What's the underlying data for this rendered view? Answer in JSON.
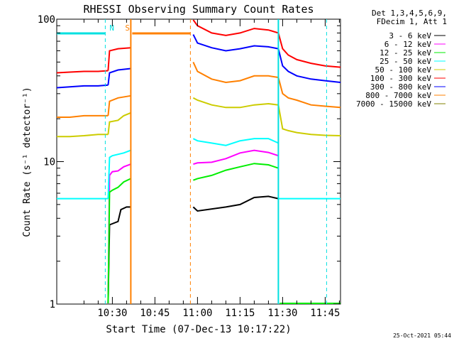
{
  "chart_data": {
    "type": "line",
    "title": "RHESSI Observing Summary Count Rates",
    "xlabel": "Start Time (07-Dec-13 10:17:22)",
    "ylabel": "Count Rate (s⁻¹ detector⁻¹)",
    "yscale": "log",
    "ylim": [
      1,
      100
    ],
    "xlim_minutes": [
      10.4,
      110.4
    ],
    "x_ticks": [
      {
        "label": "10:30",
        "t": 30
      },
      {
        "label": "10:45",
        "t": 45
      },
      {
        "label": "11:00",
        "t": 60
      },
      {
        "label": "11:15",
        "t": 75
      },
      {
        "label": "11:30",
        "t": 90
      },
      {
        "label": "11:45",
        "t": 105
      }
    ],
    "y_ticks": [
      {
        "label": "1",
        "v": 1
      },
      {
        "label": "10",
        "v": 10
      },
      {
        "label": "100",
        "v": 100
      }
    ],
    "legend": {
      "placement": "right",
      "header": [
        "Det 1,3,4,5,6,9,",
        "FDecim 1, Att 1"
      ],
      "entries": [
        {
          "label": "3 - 6 keV",
          "color": "#000000"
        },
        {
          "label": "6 - 12 keV",
          "color": "#ff00ff"
        },
        {
          "label": "12 - 25 keV",
          "color": "#00ee00"
        },
        {
          "label": "25 - 50 keV",
          "color": "#00ffff"
        },
        {
          "label": "50 - 100 keV",
          "color": "#cccc00"
        },
        {
          "label": "100 - 300 keV",
          "color": "#ff0000"
        },
        {
          "label": "300 - 800 keV",
          "color": "#0000ff"
        },
        {
          "label": "800 - 7000 keV",
          "color": "#ff8000"
        },
        {
          "label": "7000 - 15000 keV",
          "color": "#808000"
        }
      ]
    },
    "flags": [
      {
        "label": "N",
        "color": "#00e0e0",
        "start": 10.4,
        "end": 27.5,
        "dashed_at": 27.5
      },
      {
        "label": "S",
        "color": "#ff8000",
        "start": 37.0,
        "end": 57.5,
        "dashed_at": 57.5
      }
    ],
    "gap": {
      "start": 36.5,
      "end": 58.5
    },
    "solid_markers": [
      {
        "t": 36.5,
        "color": "#ff8000"
      },
      {
        "t": 88.5,
        "color": "#00e0e0"
      }
    ],
    "dashed_markers": [
      {
        "t": 27.5,
        "color": "#00e0e0"
      },
      {
        "t": 57.5,
        "color": "#ff8000"
      },
      {
        "t": 105.5,
        "color": "#00e0e0"
      }
    ],
    "series": [
      {
        "name": "3 - 6 keV",
        "color": "#000000",
        "segments": [
          {
            "x": [
              28.5,
              29,
              32,
              33,
              35,
              36.5
            ],
            "y": [
              0.9,
              3.6,
              3.8,
              4.6,
              4.8,
              4.8
            ]
          },
          {
            "x": [
              58.5,
              60,
              70,
              75,
              80,
              85,
              88.5
            ],
            "y": [
              4.8,
              4.5,
              4.8,
              5.0,
              5.6,
              5.7,
              5.5
            ]
          }
        ]
      },
      {
        "name": "6 - 12 keV",
        "color": "#ff00ff",
        "segments": [
          {
            "x": [
              28.5,
              29,
              30,
              32,
              34,
              36.5
            ],
            "y": [
              0.9,
              8.0,
              8.5,
              8.6,
              9.2,
              9.6
            ]
          },
          {
            "x": [
              58.5,
              60,
              65,
              70,
              75,
              80,
              85,
              88.5
            ],
            "y": [
              9.6,
              9.8,
              9.9,
              10.5,
              11.5,
              12.0,
              11.6,
              11.0
            ]
          }
        ]
      },
      {
        "name": "12 - 25 keV",
        "color": "#00ee00",
        "segments": [
          {
            "x": [
              28.5,
              29,
              30,
              32,
              34,
              36.5
            ],
            "y": [
              0.9,
              6.1,
              6.3,
              6.6,
              7.2,
              7.6
            ]
          },
          {
            "x": [
              58.5,
              60,
              65,
              70,
              75,
              80,
              85,
              88.5
            ],
            "y": [
              7.4,
              7.6,
              8.0,
              8.7,
              9.2,
              9.7,
              9.5,
              9.0
            ]
          },
          {
            "x": [
              89,
              93,
              95,
              105,
              110.4
            ],
            "y": [
              0.9,
              0.9,
              1.0,
              1.0,
              0.9
            ]
          }
        ]
      },
      {
        "name": "25 - 50 keV",
        "color": "#00ffff",
        "segments": [
          {
            "x": [
              10.4,
              15,
              20,
              25,
              28.5
            ],
            "y": [
              5.5,
              5.5,
              5.5,
              5.5,
              5.5
            ]
          },
          {
            "x": [
              28.5,
              29,
              30,
              34,
              36.5
            ],
            "y": [
              5.5,
              10.7,
              11.0,
              11.5,
              12.0
            ]
          },
          {
            "x": [
              58.5,
              60,
              65,
              70,
              75,
              80,
              85,
              88.5
            ],
            "y": [
              14.5,
              14.0,
              13.5,
              13.0,
              14.0,
              14.5,
              14.5,
              13.5
            ]
          },
          {
            "x": [
              88.5,
              90,
              95,
              100,
              105,
              110.4
            ],
            "y": [
              5.5,
              5.5,
              5.5,
              5.5,
              5.5,
              5.5
            ]
          }
        ]
      },
      {
        "name": "50 - 100 keV",
        "color": "#cccc00",
        "segments": [
          {
            "x": [
              10.4,
              15,
              20,
              25,
              28.5
            ],
            "y": [
              15.0,
              15.0,
              15.2,
              15.5,
              15.5
            ]
          },
          {
            "x": [
              28.5,
              29,
              32,
              34,
              36.5
            ],
            "y": [
              15.5,
              19.0,
              19.5,
              21.0,
              22.0
            ]
          },
          {
            "x": [
              58.5,
              60,
              65,
              70,
              75,
              80,
              85,
              88.5
            ],
            "y": [
              28.0,
              27.0,
              25.0,
              24.0,
              24.0,
              25.0,
              25.5,
              25.0
            ]
          },
          {
            "x": [
              88.5,
              90,
              92,
              95,
              100,
              105,
              110.4
            ],
            "y": [
              25.0,
              17.0,
              16.5,
              16.0,
              15.5,
              15.3,
              15.2
            ]
          }
        ]
      },
      {
        "name": "100 - 300 keV",
        "color": "#ff0000",
        "segments": [
          {
            "x": [
              10.4,
              15,
              20,
              25,
              28.5
            ],
            "y": [
              42.0,
              42.5,
              43.0,
              43.0,
              43.5
            ]
          },
          {
            "x": [
              28.5,
              29,
              32,
              36.5
            ],
            "y": [
              43.5,
              60.0,
              62.0,
              63.0
            ]
          },
          {
            "x": [
              58.5,
              60,
              65,
              70,
              75,
              80,
              85,
              88.5
            ],
            "y": [
              100,
              90,
              80,
              77,
              80,
              86,
              84,
              80
            ]
          },
          {
            "x": [
              88.5,
              90,
              92,
              95,
              100,
              105,
              110.4
            ],
            "y": [
              80,
              62,
              56,
              52,
              49,
              47,
              46
            ]
          }
        ]
      },
      {
        "name": "300 - 800 keV",
        "color": "#0000ff",
        "segments": [
          {
            "x": [
              10.4,
              15,
              20,
              25,
              28.5
            ],
            "y": [
              33.0,
              33.5,
              34.0,
              34.0,
              34.5
            ]
          },
          {
            "x": [
              28.5,
              29,
              32,
              36.5
            ],
            "y": [
              34.5,
              42.0,
              44.0,
              45.0
            ]
          },
          {
            "x": [
              58.5,
              60,
              65,
              70,
              75,
              80,
              85,
              88.5
            ],
            "y": [
              78,
              68,
              63,
              60,
              62,
              65,
              64,
              62
            ]
          },
          {
            "x": [
              88.5,
              90,
              92,
              95,
              100,
              105,
              110.4
            ],
            "y": [
              62,
              47,
              43,
              40,
              38,
              37,
              36
            ]
          }
        ]
      },
      {
        "name": "800 - 7000 keV",
        "color": "#ff8000",
        "segments": [
          {
            "x": [
              10.4,
              15,
              20,
              25,
              28.5
            ],
            "y": [
              20.5,
              20.5,
              21.0,
              21.0,
              21.0
            ]
          },
          {
            "x": [
              28.5,
              29,
              32,
              36.5
            ],
            "y": [
              21.0,
              26.5,
              28.0,
              29.0
            ]
          },
          {
            "x": [
              58.5,
              60,
              65,
              70,
              75,
              80,
              85,
              88.5
            ],
            "y": [
              50,
              43,
              38,
              36,
              37,
              40,
              40,
              39
            ]
          },
          {
            "x": [
              88.5,
              90,
              92,
              95,
              100,
              105,
              110.4
            ],
            "y": [
              39,
              30,
              28,
              27,
              25,
              24.5,
              24
            ]
          }
        ]
      },
      {
        "name": "7000 - 15000 keV",
        "color": "#808000",
        "segments": []
      }
    ],
    "footer_timestamp": "25-Oct-2021 05:44"
  }
}
